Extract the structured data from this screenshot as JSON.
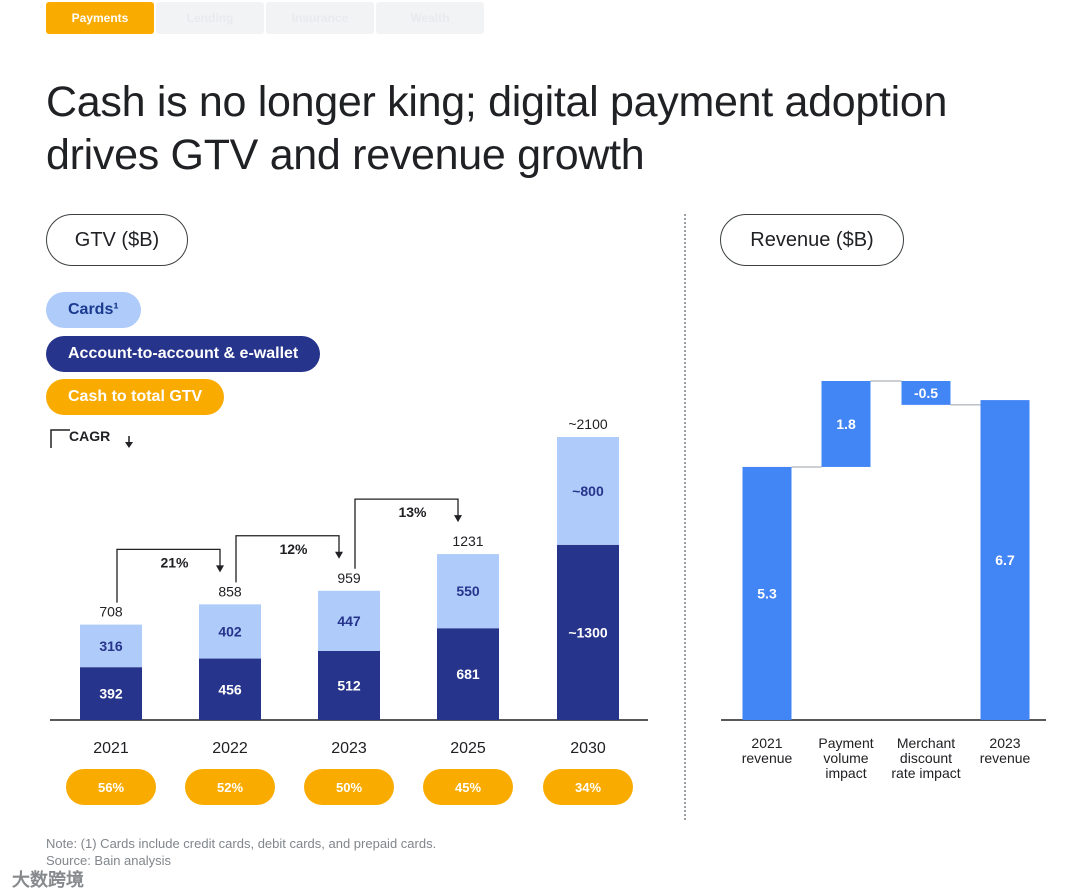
{
  "tabs": [
    {
      "label": "Payments",
      "active": true
    },
    {
      "label": "Lending",
      "active": false
    },
    {
      "label": "Insurance",
      "active": false
    },
    {
      "label": "Wealth",
      "active": false
    }
  ],
  "title": {
    "line1": "Cash is no longer king; digital payment adoption",
    "line2": "drives GTV and revenue growth"
  },
  "gtv_panel": {
    "header": "GTV ($B)",
    "legend": {
      "cards": "Cards¹",
      "a2a": "Account-to-account & e-wallet",
      "cash": "Cash to total GTV"
    },
    "cagr_label": "CAGR"
  },
  "revenue_panel": {
    "header": "Revenue ($B)"
  },
  "colors": {
    "cards": "#aecbfa",
    "a2a": "#27348b",
    "cash": "#f9ab00",
    "revenue": "#4285f4",
    "axis": "#202124"
  },
  "chart_data": [
    {
      "type": "bar",
      "title": "GTV ($B)",
      "categories": [
        "2021",
        "2022",
        "2023",
        "2025",
        "2030"
      ],
      "series": [
        {
          "name": "Account-to-account & e-wallet",
          "values": [
            392,
            456,
            512,
            681,
            1300
          ],
          "labels": [
            "392",
            "456",
            "512",
            "681",
            "~1300"
          ]
        },
        {
          "name": "Cards¹",
          "values": [
            316,
            402,
            447,
            550,
            800
          ],
          "labels": [
            "316",
            "402",
            "447",
            "550",
            "~800"
          ]
        }
      ],
      "totals": [
        708,
        858,
        959,
        1231,
        2100
      ],
      "total_labels": [
        "708",
        "858",
        "959",
        "1231",
        "~2100"
      ],
      "cash_to_total_gtv": [
        "56%",
        "52%",
        "50%",
        "45%",
        "34%"
      ],
      "cagr": [
        {
          "from": "2021",
          "to": "2022",
          "label": "21%"
        },
        {
          "from": "2022",
          "to": "2023",
          "label": "12%"
        },
        {
          "from": "2023",
          "to": "2025",
          "label": "13%"
        }
      ],
      "stacked": true,
      "ylim": [
        0,
        2100
      ]
    },
    {
      "type": "waterfall",
      "title": "Revenue ($B)",
      "categories": [
        "2021 revenue",
        "Payment volume impact",
        "Merchant discount rate impact",
        "2023 revenue"
      ],
      "category_lines": [
        [
          "2021",
          "revenue"
        ],
        [
          "Payment",
          "volume",
          "impact"
        ],
        [
          "Merchant",
          "discount",
          "rate impact"
        ],
        [
          "2023",
          "revenue"
        ]
      ],
      "values": [
        5.3,
        1.8,
        -0.5,
        6.7
      ],
      "labels": [
        "5.3",
        "1.8",
        "-0.5",
        "6.7"
      ],
      "kinds": [
        "total",
        "delta",
        "delta",
        "total"
      ],
      "ylim": [
        0,
        7.1
      ]
    }
  ],
  "footnote": {
    "note": "Note: (1) Cards include credit cards, debit cards, and prepaid cards.",
    "source": "Source: Bain analysis"
  },
  "watermark": "大数跨境"
}
